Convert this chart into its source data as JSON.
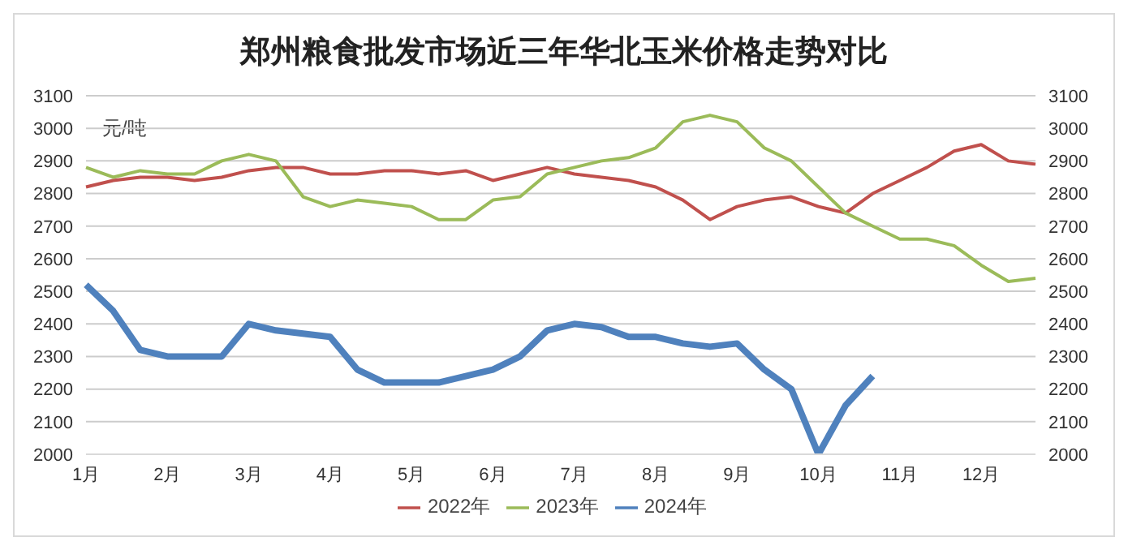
{
  "chart_data": {
    "type": "line",
    "title": "郑州粮食批发市场近三年华北玉米价格走势对比",
    "ylabel": "元/吨",
    "categories": [
      "1月",
      null,
      null,
      "2月",
      null,
      null,
      "3月",
      null,
      null,
      "4月",
      null,
      null,
      "5月",
      null,
      null,
      "6月",
      null,
      null,
      "7月",
      null,
      null,
      "8月",
      null,
      null,
      "9月",
      null,
      null,
      "10月",
      null,
      null,
      "11月",
      null,
      null,
      "12月",
      null,
      null
    ],
    "series": [
      {
        "name": "2022年",
        "color": "#c0504d",
        "values": [
          2820,
          2840,
          2850,
          2850,
          2840,
          2850,
          2870,
          2880,
          2880,
          2860,
          2860,
          2870,
          2870,
          2860,
          2870,
          2840,
          2860,
          2880,
          2860,
          2850,
          2840,
          2820,
          2780,
          2720,
          2760,
          2780,
          2790,
          2760,
          2740,
          2800,
          2840,
          2880,
          2930,
          2950,
          2900,
          2890
        ]
      },
      {
        "name": "2023年",
        "color": "#9bbb59",
        "values": [
          2880,
          2850,
          2870,
          2860,
          2860,
          2900,
          2920,
          2900,
          2790,
          2760,
          2780,
          2770,
          2760,
          2720,
          2720,
          2780,
          2790,
          2860,
          2880,
          2900,
          2910,
          2940,
          3020,
          3040,
          3020,
          2940,
          2900,
          2820,
          2740,
          2700,
          2660,
          2660,
          2640,
          2580,
          2530,
          2540
        ]
      },
      {
        "name": "2024年",
        "color": "#4f81bd",
        "values": [
          2520,
          2440,
          2320,
          2300,
          2300,
          2300,
          2400,
          2380,
          2370,
          2360,
          2260,
          2220,
          2220,
          2220,
          2240,
          2260,
          2300,
          2380,
          2400,
          2390,
          2360,
          2360,
          2340,
          2330,
          2340,
          2260,
          2200,
          2000,
          2150,
          2240,
          null,
          null,
          null,
          null,
          null,
          null
        ]
      }
    ],
    "ylim": [
      2000,
      3100
    ],
    "yticks": [
      2000,
      2100,
      2200,
      2300,
      2400,
      2500,
      2600,
      2700,
      2800,
      2900,
      3000,
      3100
    ],
    "y2lim": [
      2000,
      3100
    ],
    "y2ticks": [
      2000,
      2100,
      2200,
      2300,
      2400,
      2500,
      2600,
      2700,
      2800,
      2900,
      3000,
      3100
    ],
    "grid": "y",
    "legend": "bottom",
    "marker": "none",
    "line_style": "solid"
  }
}
